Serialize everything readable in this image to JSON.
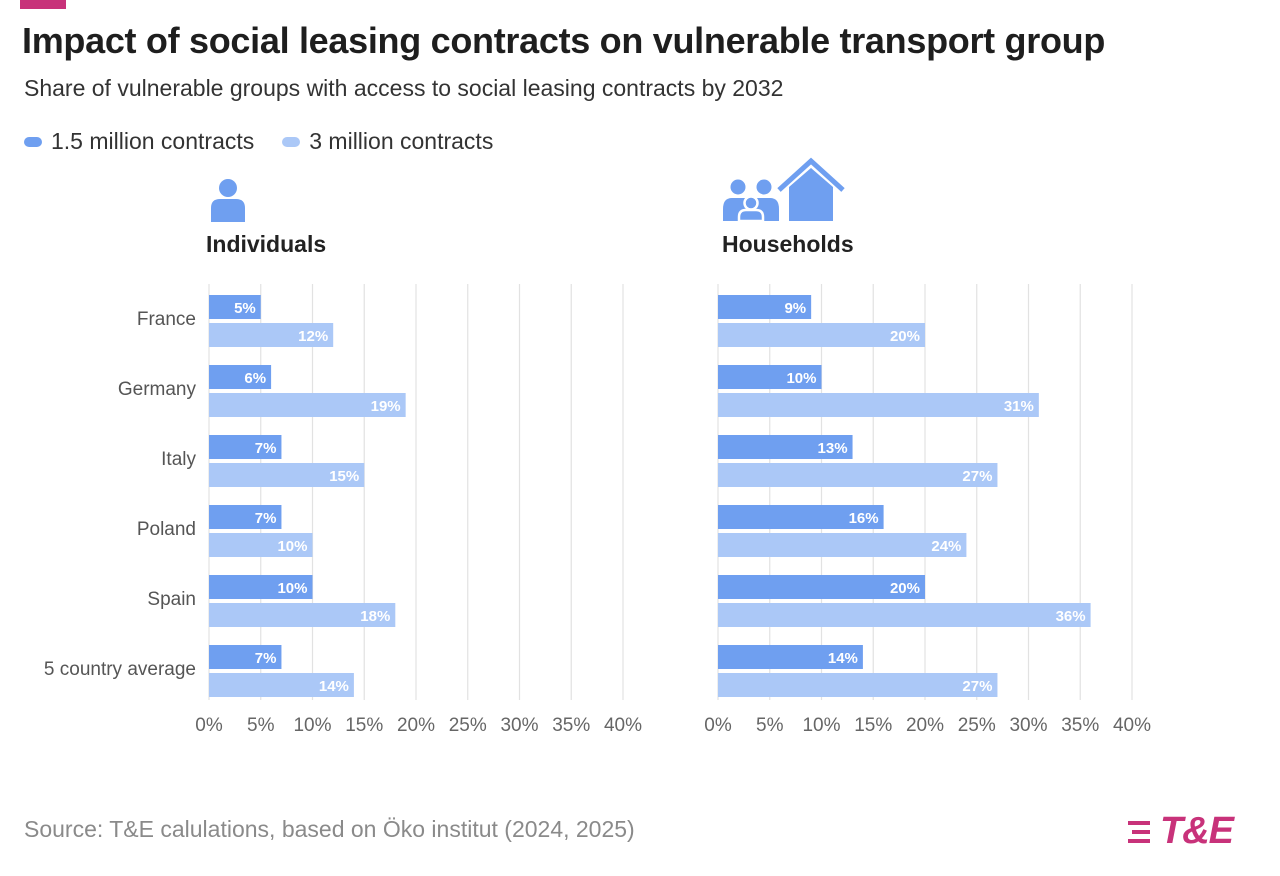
{
  "title": "Impact of social leasing contracts on vulnerable transport group",
  "subtitle": "Share of vulnerable groups with access to social leasing contracts by 2032",
  "legend": [
    {
      "label": "1.5 million contracts",
      "color": "#6f9ff0"
    },
    {
      "label": "3 million contracts",
      "color": "#abc8f7"
    }
  ],
  "source": "Source: T&E calulations, based on Öko institut (2024, 2025)",
  "logo_text": "T&E",
  "colors": {
    "accent": "#c8327a",
    "series1": "#6f9ff0",
    "series2": "#abc8f7",
    "grid": "#e2e2e2",
    "axis_text": "#666666"
  },
  "icons": {
    "individuals": "person-icon",
    "households": "family-house-icon"
  },
  "chart_data": [
    {
      "type": "bar",
      "orientation": "horizontal",
      "title": "Individuals",
      "categories": [
        "France",
        "Germany",
        "Italy",
        "Poland",
        "Spain",
        "5 country average"
      ],
      "series": [
        {
          "name": "1.5 million contracts",
          "values": [
            5,
            6,
            7,
            7,
            10,
            7
          ]
        },
        {
          "name": "3 million contracts",
          "values": [
            12,
            19,
            15,
            10,
            18,
            14
          ]
        }
      ],
      "xlim": [
        0,
        40
      ],
      "xticks": [
        "0%",
        "5%",
        "10%",
        "15%",
        "20%",
        "25%",
        "30%",
        "35%",
        "40%"
      ],
      "value_suffix": "%"
    },
    {
      "type": "bar",
      "orientation": "horizontal",
      "title": "Households",
      "categories": [
        "France",
        "Germany",
        "Italy",
        "Poland",
        "Spain",
        "5 country average"
      ],
      "series": [
        {
          "name": "1.5 million contracts",
          "values": [
            9,
            10,
            13,
            16,
            20,
            14
          ]
        },
        {
          "name": "3 million contracts",
          "values": [
            20,
            31,
            27,
            24,
            36,
            27
          ]
        }
      ],
      "xlim": [
        0,
        40
      ],
      "xticks": [
        "0%",
        "5%",
        "10%",
        "15%",
        "20%",
        "25%",
        "30%",
        "35%",
        "40%"
      ],
      "value_suffix": "%"
    }
  ]
}
